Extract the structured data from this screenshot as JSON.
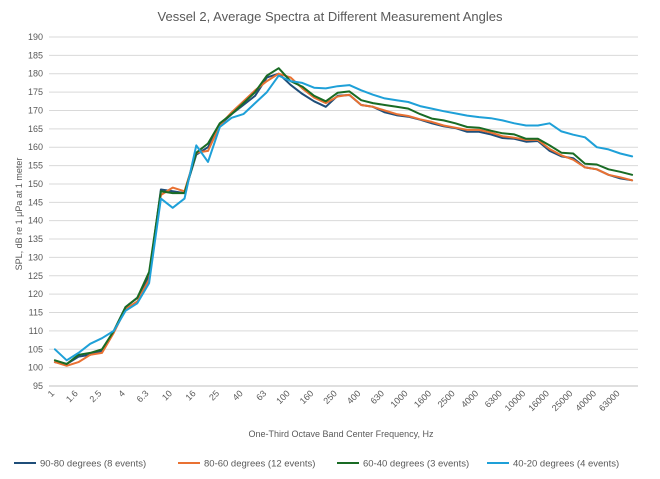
{
  "chart_data": {
    "type": "line",
    "title": "Vessel 2, Average Spectra at Different Measurement Angles",
    "xlabel": "One-Third Octave Band Center Frequency, Hz",
    "ylabel": "SPL, dB re 1 μPa at 1 meter",
    "ylim": [
      95,
      190
    ],
    "ytick_step": 5,
    "grid": true,
    "legend_position": "bottom",
    "x_tick_labels": [
      "1",
      "1.6",
      "2.5",
      "4",
      "6.3",
      "10",
      "16",
      "25",
      "40",
      "63",
      "100",
      "160",
      "250",
      "400",
      "630",
      "1000",
      "1600",
      "2500",
      "4000",
      "6300",
      "10000",
      "16000",
      "25000",
      "40000",
      "63000"
    ],
    "x": [
      "1",
      "1.25",
      "1.6",
      "2",
      "2.5",
      "3.15",
      "4",
      "5",
      "6.3",
      "8",
      "10",
      "12.5",
      "16",
      "20",
      "25",
      "31.5",
      "40",
      "50",
      "63",
      "80",
      "100",
      "125",
      "160",
      "200",
      "250",
      "315",
      "400",
      "500",
      "630",
      "800",
      "1000",
      "1250",
      "1600",
      "2000",
      "2500",
      "3150",
      "4000",
      "5000",
      "6300",
      "8000",
      "10000",
      "12500",
      "16000",
      "20000",
      "25000",
      "31500",
      "40000",
      "50000",
      "63000",
      "80000"
    ],
    "series": [
      {
        "name": "90-80 degrees (8 events)",
        "color": "#1f4e79",
        "values": [
          101.5,
          101,
          103,
          103.5,
          104.5,
          110,
          116.5,
          119,
          125,
          148.5,
          148,
          147.5,
          158,
          160,
          166,
          169,
          171.5,
          174,
          179,
          180,
          177,
          174.5,
          172.5,
          171,
          174,
          174.2,
          171.5,
          171,
          169.5,
          168.7,
          168.3,
          167.5,
          166.5,
          165.7,
          165.2,
          164.2,
          164.2,
          163.5,
          162.5,
          162.3,
          161.5,
          161.7,
          159,
          157.5,
          157,
          154.5,
          154,
          152.5,
          151.5,
          151
        ]
      },
      {
        "name": "80-60 degrees (12 events)",
        "color": "#e97132",
        "values": [
          101.5,
          100.5,
          101.5,
          103.5,
          104,
          109.5,
          116,
          118,
          124,
          147,
          149,
          148,
          158.5,
          159,
          166,
          169.5,
          172.5,
          175.5,
          178,
          180,
          179,
          176,
          173.5,
          172,
          173.8,
          174.3,
          171.5,
          171,
          170,
          169,
          168.5,
          167.6,
          166.9,
          165.9,
          165.3,
          164.7,
          164.7,
          164,
          163,
          162.6,
          162,
          162,
          159.5,
          157.8,
          156.6,
          154.5,
          154,
          152.5,
          151.8,
          151
        ]
      },
      {
        "name": "60-40 degrees (3 events)",
        "color": "#196b24",
        "values": [
          102,
          101,
          103.5,
          104,
          105,
          110,
          116.5,
          119,
          126,
          148,
          147.5,
          147.5,
          158.5,
          161,
          166.5,
          169,
          172,
          175,
          179.5,
          181.5,
          178,
          176.5,
          174,
          172.5,
          174.8,
          175.2,
          172.8,
          172,
          171.5,
          171,
          170.5,
          169,
          167.8,
          167.3,
          166.5,
          165.5,
          165.3,
          164.5,
          163.8,
          163.5,
          162.3,
          162.3,
          160.5,
          158.5,
          158.3,
          155.5,
          155.3,
          154,
          153.3,
          152.5
        ]
      },
      {
        "name": "40-20 degrees (4 events)",
        "color": "#1ea0d8",
        "values": [
          105,
          102,
          104,
          106.5,
          108,
          110,
          115.5,
          117.5,
          123,
          146,
          143.5,
          146,
          160.5,
          156,
          165.5,
          168,
          169,
          172,
          175,
          179.5,
          178,
          177.5,
          176.2,
          176,
          176.6,
          176.9,
          175.5,
          174.3,
          173.3,
          172.8,
          172.3,
          171.2,
          170.5,
          169.8,
          169.2,
          168.6,
          168.2,
          167.9,
          167.3,
          166.5,
          165.9,
          165.9,
          166.5,
          164.3,
          163.4,
          162.7,
          160,
          159.4,
          158.3,
          157.5
        ]
      }
    ]
  }
}
